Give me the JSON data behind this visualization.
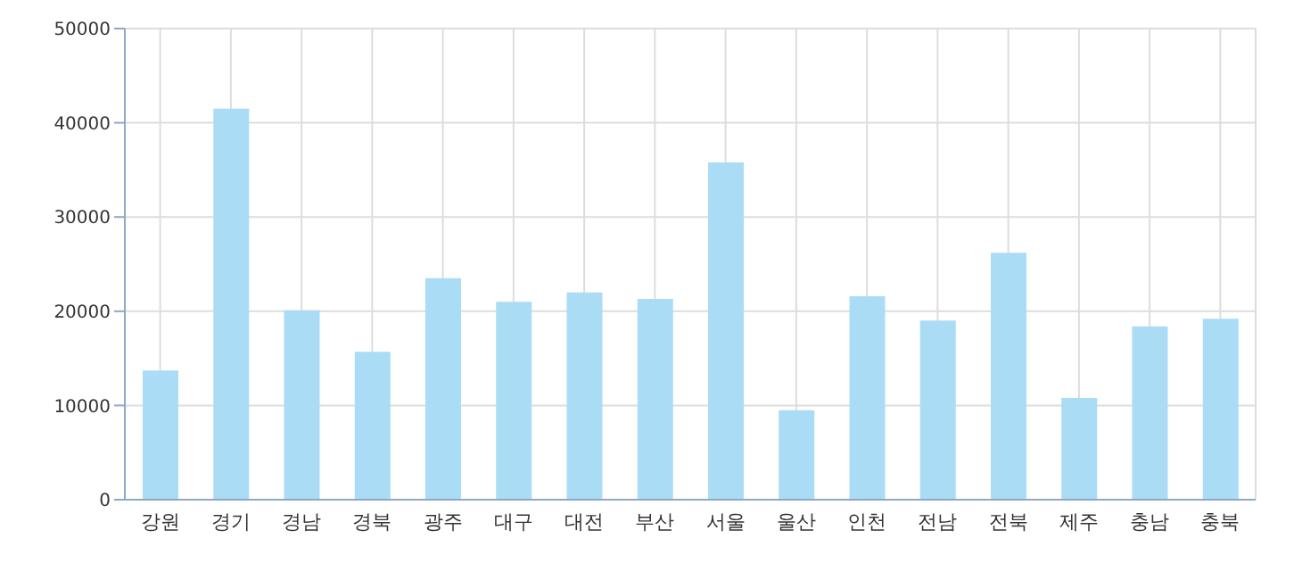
{
  "chart_data": {
    "type": "bar",
    "categories": [
      "강원",
      "경기",
      "경남",
      "경북",
      "광주",
      "대구",
      "대전",
      "부산",
      "서울",
      "울산",
      "인천",
      "전남",
      "전북",
      "제주",
      "충남",
      "충북"
    ],
    "series": [
      {
        "color": "#aadcf5",
        "values": [
          13700,
          41500,
          20100,
          15700,
          23500,
          21000,
          22000,
          21300,
          35800,
          9500,
          21600,
          19000,
          26200,
          10800,
          18400,
          19200
        ]
      }
    ],
    "ylim": [
      0,
      50000
    ],
    "yticks": [
      0,
      10000,
      20000,
      30000,
      40000,
      50000
    ],
    "grid": true
  }
}
